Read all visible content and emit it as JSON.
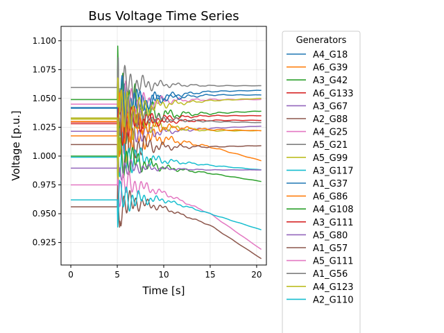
{
  "chart_data": {
    "type": "line",
    "title": "Bus Voltage Time Series",
    "xlabel": "Time [s]",
    "ylabel": "Voltage [p.u.]",
    "xlim": [
      -1.05,
      21.05
    ],
    "ylim": [
      0.9055,
      1.1125
    ],
    "xticks": [
      0,
      5,
      10,
      15,
      20
    ],
    "yticks": [
      0.925,
      0.95,
      0.975,
      1.0,
      1.025,
      1.05,
      1.075,
      1.1
    ],
    "ytick_labels": [
      "0.925",
      "0.950",
      "0.975",
      "1.000",
      "1.025",
      "1.050",
      "1.075",
      "1.100"
    ],
    "grid": true,
    "legend": {
      "title": "Generators",
      "placement": "outside-right"
    },
    "fault_time": 5.0,
    "end_time": 20.5,
    "colors": [
      "#1f77b4",
      "#ff7f0e",
      "#2ca02c",
      "#d62728",
      "#9467bd",
      "#8c564b",
      "#e377c2",
      "#7f7f7f",
      "#bcbd22",
      "#17becf"
    ],
    "series": [
      {
        "name": "A4_G18",
        "pre": 1.0415,
        "post": [
          [
            7,
            1.045
          ],
          [
            10,
            1.052
          ],
          [
            15,
            1.056
          ],
          [
            20.5,
            1.057
          ]
        ],
        "osc": 0.01
      },
      {
        "name": "A6_G39",
        "pre": 1.0175,
        "post": [
          [
            7,
            1.018
          ],
          [
            10,
            1.015
          ],
          [
            15,
            1.008
          ],
          [
            20.5,
            0.996
          ]
        ],
        "osc": 0.012
      },
      {
        "name": "A3_G42",
        "pre": 1.049,
        "post": [
          [
            7,
            1.04
          ],
          [
            10,
            1.036
          ],
          [
            15,
            1.037
          ],
          [
            20.5,
            1.039
          ]
        ],
        "osc": 0.015
      },
      {
        "name": "A6_G133",
        "pre": 1.0295,
        "post": [
          [
            7,
            1.031
          ],
          [
            10,
            1.033
          ],
          [
            15,
            1.035
          ],
          [
            20.5,
            1.035
          ]
        ],
        "osc": 0.008
      },
      {
        "name": "A3_G67",
        "pre": 1.0215,
        "post": [
          [
            7,
            1.02
          ],
          [
            10,
            1.021
          ],
          [
            15,
            1.024
          ],
          [
            20.5,
            1.026
          ]
        ],
        "osc": 0.008
      },
      {
        "name": "A2_G88",
        "pre": 1.01,
        "post": [
          [
            7,
            1.01
          ],
          [
            10,
            1.008
          ],
          [
            15,
            1.008
          ],
          [
            20.5,
            1.009
          ]
        ],
        "osc": 0.01
      },
      {
        "name": "A4_G25",
        "pre": 1.045,
        "post": [
          [
            7,
            1.045
          ],
          [
            10,
            1.048
          ],
          [
            15,
            1.049
          ],
          [
            20.5,
            1.049
          ]
        ],
        "osc": 0.01
      },
      {
        "name": "A5_G21",
        "pre": 1.0595,
        "post": [
          [
            7,
            1.062
          ],
          [
            10,
            1.062
          ],
          [
            15,
            1.061
          ],
          [
            20.5,
            1.061
          ]
        ],
        "osc": 0.008
      },
      {
        "name": "A5_G99",
        "pre": 1.032,
        "post": [
          [
            7,
            1.03
          ],
          [
            10,
            1.025
          ],
          [
            15,
            1.022
          ],
          [
            20.5,
            1.022
          ]
        ],
        "osc": 0.01
      },
      {
        "name": "A3_G117",
        "pre": 0.999,
        "post": [
          [
            7,
            0.999
          ],
          [
            10,
            0.996
          ],
          [
            15,
            0.992
          ],
          [
            20.5,
            0.988
          ]
        ],
        "osc": 0.008
      },
      {
        "name": "A1_G37",
        "pre": 1.042,
        "post": [
          [
            7,
            1.045
          ],
          [
            10,
            1.05
          ],
          [
            15,
            1.053
          ],
          [
            20.5,
            1.053
          ]
        ],
        "osc": 0.01
      },
      {
        "name": "A6_G86",
        "pre": 1.03,
        "post": [
          [
            7,
            1.028
          ],
          [
            10,
            1.025
          ],
          [
            15,
            1.023
          ],
          [
            20.5,
            1.022
          ]
        ],
        "osc": 0.01
      },
      {
        "name": "A4_G108",
        "pre": 1.0,
        "post": [
          [
            7,
            0.995
          ],
          [
            10,
            0.99
          ],
          [
            15,
            0.985
          ],
          [
            20.5,
            0.978
          ]
        ],
        "osc": 0.008
      },
      {
        "name": "A3_G111",
        "pre": 1.028,
        "post": [
          [
            7,
            1.03
          ],
          [
            10,
            1.03
          ],
          [
            15,
            1.031
          ],
          [
            20.5,
            1.031
          ]
        ],
        "osc": 0.008
      },
      {
        "name": "A5_G80",
        "pre": 0.9895,
        "post": [
          [
            7,
            0.99
          ],
          [
            10,
            0.989
          ],
          [
            15,
            0.988
          ],
          [
            20.5,
            0.988
          ]
        ],
        "osc": 0.004
      },
      {
        "name": "A1_G57",
        "pre": 0.956,
        "post": [
          [
            7,
            0.96
          ],
          [
            10,
            0.955
          ],
          [
            15,
            0.94
          ],
          [
            20.5,
            0.911
          ]
        ],
        "osc": 0.006
      },
      {
        "name": "A5_G111",
        "pre": 0.975,
        "post": [
          [
            7,
            0.975
          ],
          [
            10,
            0.968
          ],
          [
            15,
            0.95
          ],
          [
            20.5,
            0.919
          ]
        ],
        "osc": 0.006
      },
      {
        "name": "A1_G56",
        "pre": 1.033,
        "post": [
          [
            7,
            1.035
          ],
          [
            10,
            1.032
          ],
          [
            15,
            1.03
          ],
          [
            20.5,
            1.029
          ]
        ],
        "osc": 0.008
      },
      {
        "name": "A4_G123",
        "pre": 1.033,
        "post": [
          [
            7,
            1.04
          ],
          [
            10,
            1.045
          ],
          [
            15,
            1.048
          ],
          [
            20.5,
            1.05
          ]
        ],
        "osc": 0.01
      },
      {
        "name": "A2_G110",
        "pre": 0.962,
        "post": [
          [
            7,
            0.963
          ],
          [
            10,
            0.962
          ],
          [
            15,
            0.95
          ],
          [
            20.5,
            0.936
          ]
        ],
        "osc": 0.006
      }
    ]
  }
}
